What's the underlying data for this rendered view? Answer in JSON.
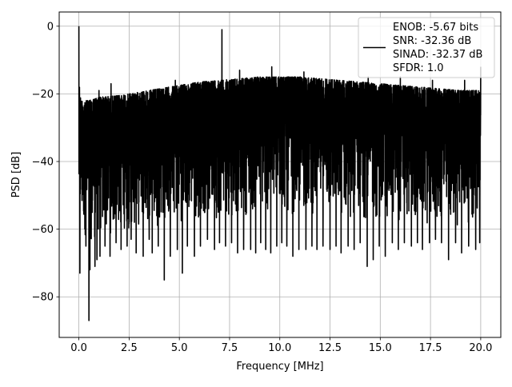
{
  "chart_data": {
    "type": "line",
    "title": "",
    "xlabel": "Frequency [MHz]",
    "ylabel": "PSD [dB]",
    "xlim": [
      -0.98,
      21.0
    ],
    "ylim": [
      -92.0,
      4.2
    ],
    "x_ticks": [
      0.0,
      2.5,
      5.0,
      7.5,
      10.0,
      12.5,
      15.0,
      17.5,
      20.0
    ],
    "x_tick_labels": [
      "0.0",
      "2.5",
      "5.0",
      "7.5",
      "10.0",
      "12.5",
      "15.0",
      "17.5",
      "20.0"
    ],
    "y_ticks": [
      0,
      -20,
      -40,
      -60,
      -80
    ],
    "y_tick_labels": [
      "0",
      "−20",
      "−40",
      "−60",
      "−80"
    ],
    "grid": true,
    "legend_position": "top-right",
    "series": [
      {
        "name": "ENOB: -5.67 bits\nSNR: -32.36 dB\nSINAD: -32.37 dB\nSFDR: 1.0",
        "legend_lines": [
          "ENOB: -5.67 bits",
          "SNR: -32.36 dB",
          "SINAD: -32.37 dB",
          "SFDR: 1.0"
        ],
        "color": "#000000",
        "x_start": 0.0,
        "x_end": 20.0,
        "description": "dense noise-floor PSD trace",
        "upper_envelope": [
          [
            0.0,
            -16
          ],
          [
            0.1,
            -22
          ],
          [
            0.5,
            -22
          ],
          [
            1.0,
            -21
          ],
          [
            2.0,
            -20.5
          ],
          [
            3.0,
            -19.5
          ],
          [
            4.0,
            -18.5
          ],
          [
            5.0,
            -17.5
          ],
          [
            6.0,
            -16.5
          ],
          [
            7.0,
            -16
          ],
          [
            8.0,
            -15.5
          ],
          [
            9.0,
            -15
          ],
          [
            10.0,
            -15
          ],
          [
            11.0,
            -15
          ],
          [
            12.0,
            -15.5
          ],
          [
            13.0,
            -16
          ],
          [
            14.0,
            -16.5
          ],
          [
            15.0,
            -17
          ],
          [
            16.0,
            -17.5
          ],
          [
            17.0,
            -18
          ],
          [
            18.0,
            -18.5
          ],
          [
            19.0,
            -19
          ],
          [
            20.0,
            -19
          ]
        ],
        "lower_envelope": [
          [
            0.0,
            -60
          ],
          [
            0.5,
            -64
          ],
          [
            1.0,
            -63
          ],
          [
            2.0,
            -61
          ],
          [
            3.0,
            -60
          ],
          [
            4.0,
            -59
          ],
          [
            5.0,
            -58
          ],
          [
            6.0,
            -57
          ],
          [
            7.0,
            -57
          ],
          [
            8.0,
            -56
          ],
          [
            9.0,
            -56
          ],
          [
            10.0,
            -56
          ],
          [
            11.0,
            -56
          ],
          [
            12.0,
            -56
          ],
          [
            13.0,
            -57
          ],
          [
            14.0,
            -57
          ],
          [
            15.0,
            -58
          ],
          [
            16.0,
            -58
          ],
          [
            17.0,
            -59
          ],
          [
            18.0,
            -59
          ],
          [
            19.0,
            -59
          ],
          [
            20.0,
            -59
          ]
        ],
        "spikes_up": [
          [
            0.0,
            0.0
          ],
          [
            1.0,
            -19
          ],
          [
            1.6,
            -17
          ],
          [
            3.2,
            -11.5
          ],
          [
            4.8,
            -16
          ],
          [
            6.4,
            -13
          ],
          [
            7.12,
            -1
          ],
          [
            8.0,
            -13
          ],
          [
            9.6,
            -12
          ],
          [
            11.2,
            -13.5
          ],
          [
            12.8,
            -14
          ],
          [
            14.4,
            -15
          ],
          [
            16.0,
            -15
          ],
          [
            17.6,
            -16
          ],
          [
            19.2,
            -16
          ],
          [
            20.0,
            -12
          ]
        ],
        "spikes_down": [
          [
            0.05,
            -73
          ],
          [
            0.35,
            -65
          ],
          [
            0.5,
            -87
          ],
          [
            0.55,
            -72
          ],
          [
            0.8,
            -71
          ],
          [
            0.9,
            -69
          ],
          [
            1.05,
            -68
          ],
          [
            1.3,
            -65
          ],
          [
            1.55,
            -68
          ],
          [
            1.85,
            -64
          ],
          [
            2.1,
            -66
          ],
          [
            2.4,
            -65
          ],
          [
            2.6,
            -63
          ],
          [
            2.85,
            -67
          ],
          [
            3.2,
            -68
          ],
          [
            3.5,
            -63
          ],
          [
            3.65,
            -67
          ],
          [
            3.95,
            -65
          ],
          [
            4.25,
            -75
          ],
          [
            4.55,
            -68
          ],
          [
            4.9,
            -66
          ],
          [
            5.15,
            -73
          ],
          [
            5.4,
            -65
          ],
          [
            5.75,
            -68
          ],
          [
            6.05,
            -65
          ],
          [
            6.4,
            -63
          ],
          [
            6.75,
            -66
          ],
          [
            7.0,
            -64
          ],
          [
            7.3,
            -65
          ],
          [
            7.6,
            -64
          ],
          [
            7.9,
            -67
          ],
          [
            8.2,
            -66
          ],
          [
            8.55,
            -66
          ],
          [
            8.8,
            -67
          ],
          [
            9.05,
            -64
          ],
          [
            9.3,
            -66
          ],
          [
            9.55,
            -67
          ],
          [
            9.85,
            -65
          ],
          [
            10.1,
            -64
          ],
          [
            10.35,
            -65
          ],
          [
            10.65,
            -68
          ],
          [
            10.95,
            -66
          ],
          [
            11.3,
            -66
          ],
          [
            11.6,
            -65
          ],
          [
            11.85,
            -66
          ],
          [
            12.15,
            -65
          ],
          [
            12.5,
            -66
          ],
          [
            12.8,
            -65
          ],
          [
            13.05,
            -67
          ],
          [
            13.4,
            -65
          ],
          [
            13.7,
            -66
          ],
          [
            14.0,
            -64
          ],
          [
            14.35,
            -71
          ],
          [
            14.65,
            -69
          ],
          [
            14.95,
            -65
          ],
          [
            15.25,
            -68
          ],
          [
            15.6,
            -64
          ],
          [
            15.9,
            -66
          ],
          [
            16.2,
            -64
          ],
          [
            16.55,
            -65
          ],
          [
            16.85,
            -64
          ],
          [
            17.1,
            -66
          ],
          [
            17.45,
            -64
          ],
          [
            17.75,
            -63
          ],
          [
            18.05,
            -64
          ],
          [
            18.4,
            -69
          ],
          [
            18.75,
            -64
          ],
          [
            19.05,
            -67
          ],
          [
            19.4,
            -65
          ],
          [
            19.75,
            -66
          ],
          [
            19.95,
            -64
          ]
        ]
      }
    ]
  }
}
